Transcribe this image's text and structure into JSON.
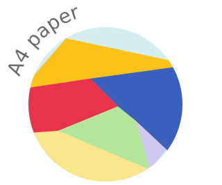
{
  "title": "A4 paper"
}
